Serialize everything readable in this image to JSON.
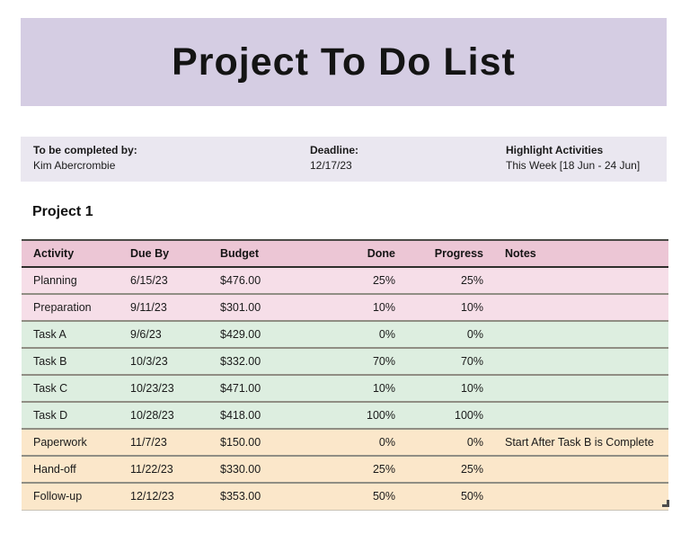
{
  "title": "Project To Do List",
  "info_bar": {
    "completed_by_label": "To be completed by:",
    "completed_by_value": "Kim Abercrombie",
    "deadline_label": "Deadline:",
    "deadline_value": "12/17/23",
    "highlight_label": "Highlight Activities",
    "highlight_value": "This Week [18 Jun - 24 Jun]"
  },
  "section_title": "Project 1",
  "table": {
    "columns": [
      "Activity",
      "Due By",
      "Budget",
      "Done",
      "Progress",
      "Notes"
    ],
    "rows": [
      {
        "activity": "Planning",
        "due_by": "6/15/23",
        "budget": "$476.00",
        "done": "25%",
        "progress": "25%",
        "notes": "",
        "group": "pink"
      },
      {
        "activity": "Preparation",
        "due_by": "9/11/23",
        "budget": "$301.00",
        "done": "10%",
        "progress": "10%",
        "notes": "",
        "group": "pink"
      },
      {
        "activity": "Task A",
        "due_by": "9/6/23",
        "budget": "$429.00",
        "done": "0%",
        "progress": "0%",
        "notes": "",
        "group": "green"
      },
      {
        "activity": "Task B",
        "due_by": "10/3/23",
        "budget": "$332.00",
        "done": "70%",
        "progress": "70%",
        "notes": "",
        "group": "green"
      },
      {
        "activity": "Task C",
        "due_by": "10/23/23",
        "budget": "$471.00",
        "done": "10%",
        "progress": "10%",
        "notes": "",
        "group": "green"
      },
      {
        "activity": "Task D",
        "due_by": "10/28/23",
        "budget": "$418.00",
        "done": "100%",
        "progress": "100%",
        "notes": "",
        "group": "green"
      },
      {
        "activity": "Paperwork",
        "due_by": "11/7/23",
        "budget": "$150.00",
        "done": "0%",
        "progress": "0%",
        "notes": "Start After Task B is Complete",
        "group": "orange"
      },
      {
        "activity": "Hand-off",
        "due_by": "11/22/23",
        "budget": "$330.00",
        "done": "25%",
        "progress": "25%",
        "notes": "",
        "group": "orange"
      },
      {
        "activity": "Follow-up",
        "due_by": "12/12/23",
        "budget": "$353.00",
        "done": "50%",
        "progress": "50%",
        "notes": "",
        "group": "orange"
      }
    ]
  },
  "colors": {
    "banner_bg": "#d5cde3",
    "info_bar_bg": "#eae7f0",
    "header_row_bg": "#ecc6d5",
    "pink_row_bg": "#f6dee8",
    "green_row_bg": "#ddeee0",
    "orange_row_bg": "#fbe7ca"
  }
}
